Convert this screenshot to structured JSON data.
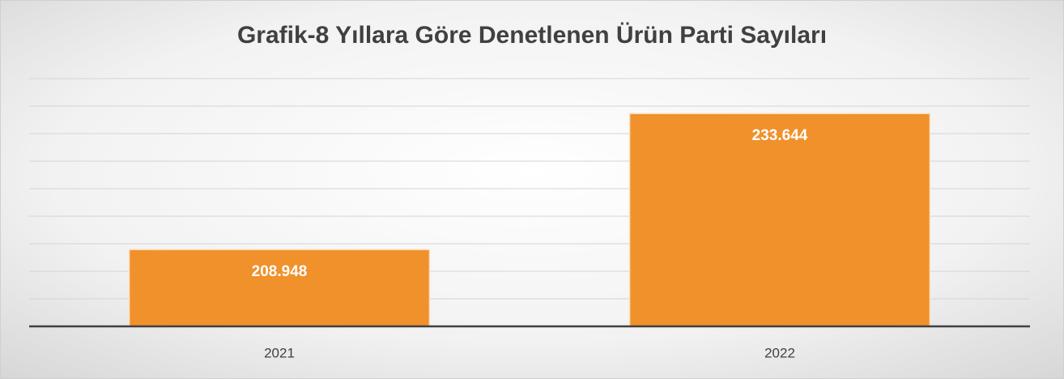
{
  "chart_data": {
    "type": "bar",
    "title": "Grafik-8 Yıllara Göre Denetlenen Ürün Parti Sayıları",
    "categories": [
      "2021",
      "2022"
    ],
    "values": [
      208948,
      233644
    ],
    "value_labels": [
      "208.948",
      "233.644"
    ],
    "color": "#f0912c",
    "ylim": [
      195000,
      240000
    ],
    "yticks": [
      195000,
      200000,
      205000,
      210000,
      215000,
      220000,
      225000,
      230000,
      235000,
      240000
    ],
    "grid": true
  }
}
